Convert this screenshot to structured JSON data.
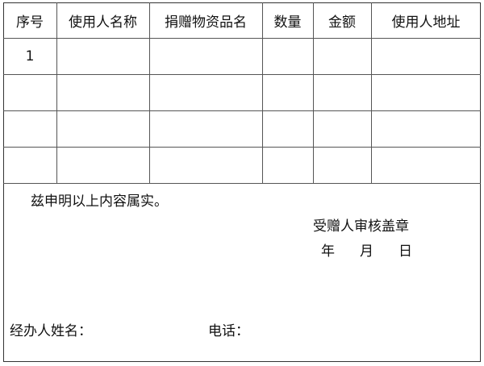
{
  "table": {
    "headers": [
      "序号",
      "使用人名称",
      "捐赠物资品名",
      "数量",
      "金额",
      "使用人地址"
    ],
    "rows": [
      [
        "1",
        "",
        "",
        "",
        "",
        ""
      ],
      [
        "",
        "",
        "",
        "",
        "",
        ""
      ],
      [
        "",
        "",
        "",
        "",
        "",
        ""
      ],
      [
        "",
        "",
        "",
        "",
        "",
        ""
      ]
    ]
  },
  "footer": {
    "declaration": "兹申明以上内容属实。",
    "seal_label": "受赠人审核盖章",
    "year": "年",
    "month": "月",
    "day": "日",
    "handler_label": "经办人姓名：",
    "phone_label": "电话："
  }
}
